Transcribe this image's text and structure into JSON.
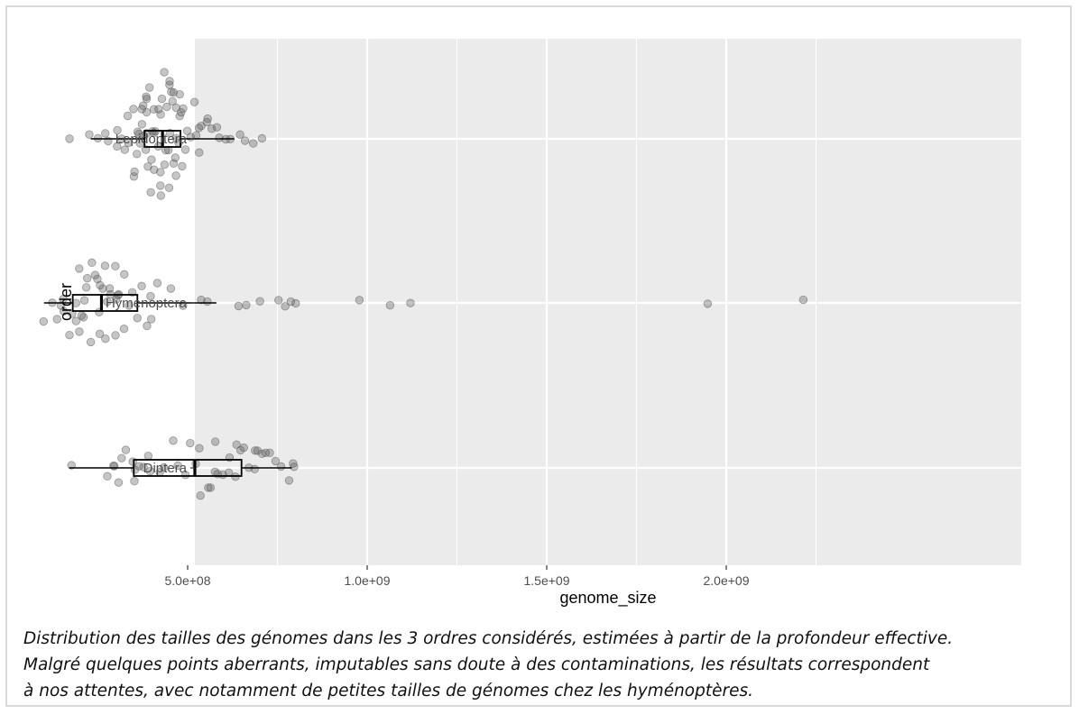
{
  "chart_data": {
    "type": "boxplot+jitter",
    "title": "",
    "xlabel": "genome_size",
    "ylabel": "order",
    "x_ticks": [
      500000000,
      1000000000,
      1500000000,
      2000000000
    ],
    "x_tick_labels": [
      "5.0e+08",
      "1.0e+09",
      "1.5e+09",
      "2.0e+09"
    ],
    "xlim": [
      0,
      2300000000
    ],
    "grid": true,
    "categories": [
      "Lepidoptera",
      "Hymenoptera",
      "Diptera"
    ],
    "series": [
      {
        "name": "Lepidoptera",
        "box": {
          "min": 230000000,
          "q1": 380000000,
          "median": 430000000,
          "q3": 480000000,
          "max": 630000000
        },
        "points_x": [
          170000000,
          230000000,
          250000000,
          265000000,
          280000000,
          300000000,
          310000000,
          320000000,
          330000000,
          335000000,
          340000000,
          345000000,
          350000000,
          355000000,
          360000000,
          362000000,
          365000000,
          368000000,
          370000000,
          372000000,
          375000000,
          378000000,
          380000000,
          382000000,
          385000000,
          387000000,
          390000000,
          392000000,
          395000000,
          397000000,
          400000000,
          402000000,
          405000000,
          407000000,
          410000000,
          412000000,
          415000000,
          417000000,
          420000000,
          422000000,
          425000000,
          427000000,
          430000000,
          432000000,
          435000000,
          437000000,
          440000000,
          442000000,
          445000000,
          447000000,
          450000000,
          452000000,
          455000000,
          458000000,
          460000000,
          463000000,
          465000000,
          468000000,
          470000000,
          473000000,
          475000000,
          478000000,
          480000000,
          485000000,
          490000000,
          495000000,
          500000000,
          505000000,
          510000000,
          515000000,
          520000000,
          525000000,
          530000000,
          540000000,
          550000000,
          560000000,
          570000000,
          580000000,
          590000000,
          600000000,
          620000000,
          640000000,
          660000000,
          680000000,
          700000000
        ]
      },
      {
        "name": "Hymenoptera",
        "box": {
          "min": 100000000,
          "q1": 180000000,
          "median": 260000000,
          "q3": 360000000,
          "max": 580000000
        },
        "points_x": [
          100000000,
          120000000,
          130000000,
          140000000,
          150000000,
          160000000,
          170000000,
          180000000,
          185000000,
          190000000,
          195000000,
          200000000,
          205000000,
          210000000,
          215000000,
          220000000,
          225000000,
          230000000,
          235000000,
          240000000,
          245000000,
          250000000,
          255000000,
          260000000,
          265000000,
          270000000,
          275000000,
          280000000,
          285000000,
          290000000,
          295000000,
          300000000,
          305000000,
          310000000,
          315000000,
          320000000,
          330000000,
          340000000,
          350000000,
          360000000,
          370000000,
          380000000,
          390000000,
          400000000,
          420000000,
          450000000,
          480000000,
          540000000,
          560000000,
          640000000,
          660000000,
          700000000,
          750000000,
          770000000,
          790000000,
          800000000,
          980000000,
          1060000000,
          1120000000,
          1950000000,
          2220000000
        ]
      },
      {
        "name": "Diptera",
        "box": {
          "min": 170000000,
          "q1": 350000000,
          "median": 520000000,
          "q3": 650000000,
          "max": 790000000
        },
        "points_x": [
          170000000,
          270000000,
          290000000,
          300000000,
          310000000,
          320000000,
          330000000,
          340000000,
          350000000,
          360000000,
          370000000,
          380000000,
          390000000,
          400000000,
          420000000,
          440000000,
          460000000,
          480000000,
          500000000,
          510000000,
          520000000,
          530000000,
          540000000,
          550000000,
          560000000,
          570000000,
          580000000,
          590000000,
          600000000,
          610000000,
          620000000,
          630000000,
          640000000,
          650000000,
          660000000,
          670000000,
          680000000,
          690000000,
          700000000,
          710000000,
          720000000,
          730000000,
          740000000,
          760000000,
          780000000,
          790000000,
          800000000
        ]
      }
    ]
  },
  "caption": {
    "line1": "Distribution des tailles des génomes dans les 3 ordres considérés, estimées à partir de la profondeur effective.",
    "line2": "Malgré quelques points aberrants, imputables sans doute à des contaminations, les résultats correspondent",
    "line3": "à nos attentes, avec notamment de petites tailles de génomes chez les hyménoptères."
  },
  "colors": {
    "panel": "#ebebeb",
    "grid": "#ffffff",
    "points": "#5a5a5a",
    "box": "#000000",
    "text": "#4d4d4d"
  }
}
